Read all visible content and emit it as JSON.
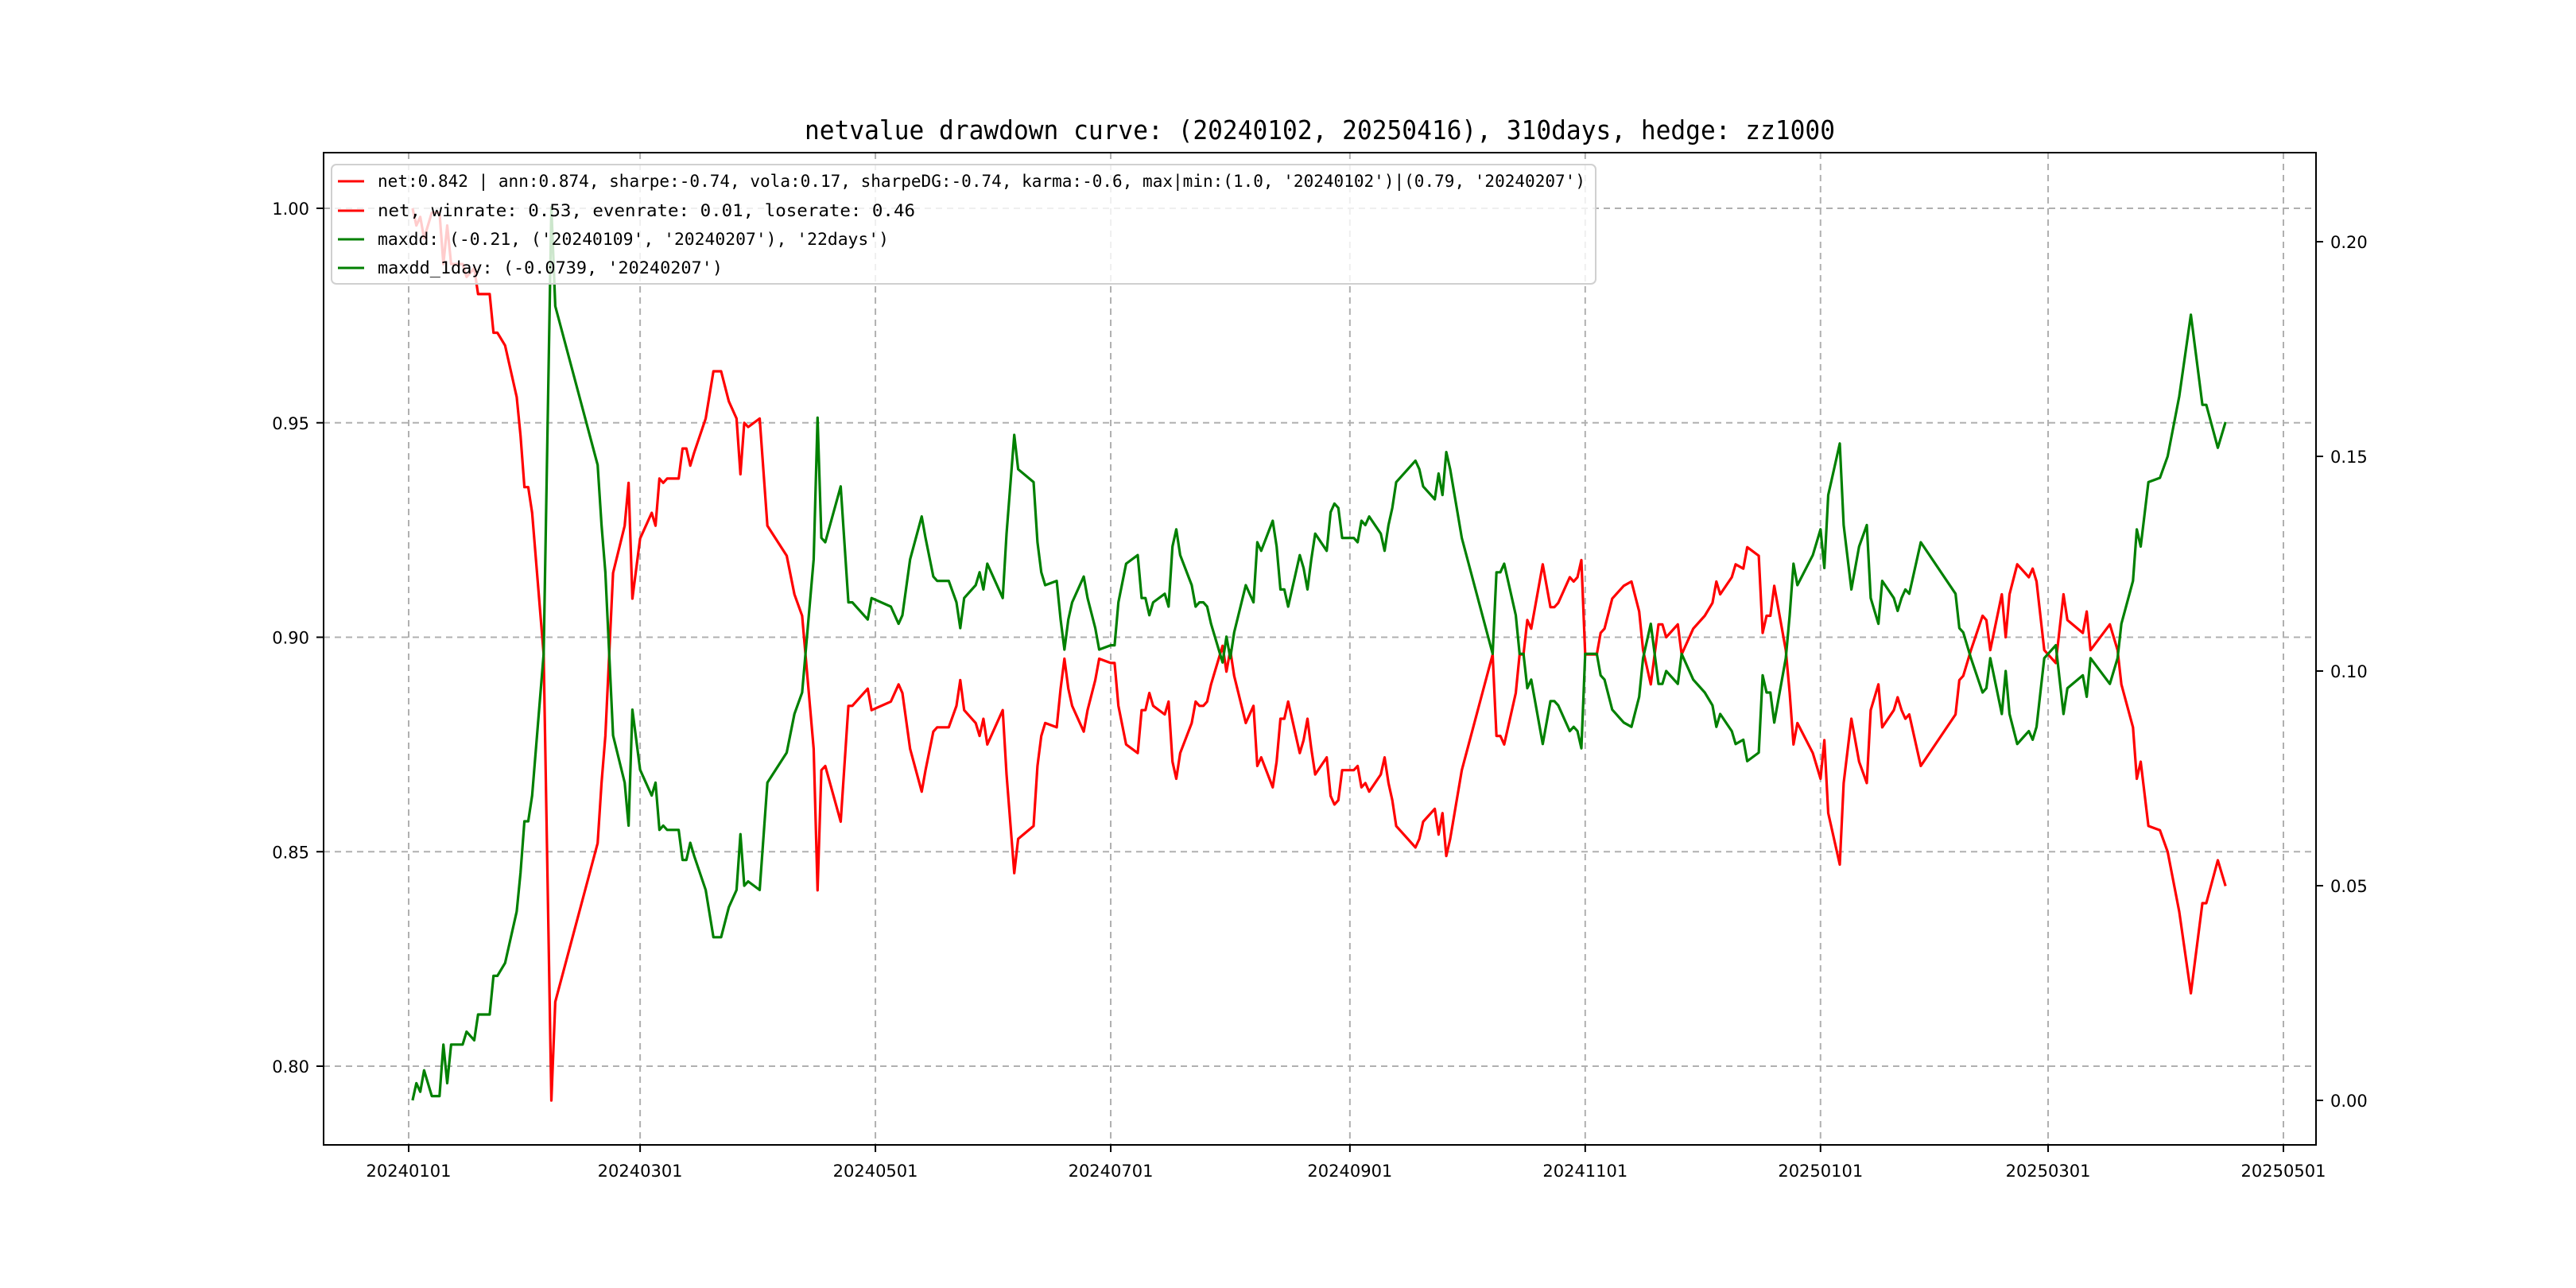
{
  "chart_data": {
    "type": "line",
    "title": "netvalue drawdown curve: (20240102, 20250416), 310days, hedge: zz1000",
    "xlabel": "",
    "ylabel_left": "",
    "ylabel_right": "",
    "x_unit": "days since 20240101",
    "x_range": [
      0,
      486
    ],
    "ylim_left": [
      0.78,
      1.013
    ],
    "ylim_right": [
      -0.013,
      0.22
    ],
    "grid": true,
    "legend_position": "top-left",
    "x_tick_labels": [
      {
        "day": 0,
        "label": "20240101"
      },
      {
        "day": 60,
        "label": "20240301"
      },
      {
        "day": 121,
        "label": "20240501"
      },
      {
        "day": 182,
        "label": "20240701"
      },
      {
        "day": 244,
        "label": "20240901"
      },
      {
        "day": 305,
        "label": "20241101"
      },
      {
        "day": 366,
        "label": "20250101"
      },
      {
        "day": 425,
        "label": "20250301"
      },
      {
        "day": 486,
        "label": "20250501"
      }
    ],
    "y_left_ticks": [
      0.8,
      0.85,
      0.9,
      0.95,
      1.0
    ],
    "y_left_tick_labels": [
      "0.80",
      "0.85",
      "0.90",
      "0.95",
      "1.00"
    ],
    "y_right_ticks": [
      0.0,
      0.05,
      0.1,
      0.15,
      0.2
    ],
    "y_right_tick_labels": [
      "0.00",
      "0.05",
      "0.10",
      "0.15",
      "0.20"
    ],
    "legend": [
      {
        "label": "net:0.842 | ann:0.874, sharpe:-0.74, vola:0.17, sharpeDG:-0.74, karma:-0.6, max|min:(1.0, '20240102')|(0.79, '20240207')",
        "color": "#ff0000"
      },
      {
        "label": "net, winrate: 0.53, evenrate: 0.01, loserate: 0.46",
        "color": "#ff0000"
      },
      {
        "label": "maxdd: (-0.21, ('20240109', '20240207'), '22days')",
        "color": "#008000"
      },
      {
        "label": "maxdd_1day: (-0.0739, '20240207')",
        "color": "#008000"
      }
    ],
    "x": [
      1,
      2,
      3,
      4,
      6,
      8,
      9,
      10,
      11,
      14,
      15,
      17,
      18,
      21,
      22,
      23,
      25,
      28,
      29,
      30,
      31,
      32,
      35,
      37,
      38,
      49,
      50,
      51,
      53,
      56,
      57,
      58,
      60,
      63,
      64,
      65,
      66,
      67,
      70,
      71,
      72,
      73,
      74,
      77,
      79,
      81,
      83,
      85,
      86,
      87,
      88,
      91,
      93,
      98,
      100,
      102,
      105,
      106,
      107,
      108,
      112,
      114,
      115,
      119,
      120,
      125,
      127,
      128,
      130,
      133,
      134,
      136,
      137,
      140,
      142,
      143,
      144,
      147,
      148,
      149,
      150,
      154,
      155,
      157,
      158,
      162,
      163,
      164,
      165,
      168,
      169,
      170,
      171,
      172,
      175,
      176,
      178,
      179,
      182,
      183,
      184,
      186,
      189,
      190,
      191,
      192,
      193,
      196,
      197,
      198,
      199,
      200,
      203,
      204,
      205,
      206,
      207,
      208,
      211,
      212,
      213,
      214,
      217,
      219,
      220,
      221,
      224,
      225,
      226,
      227,
      228,
      231,
      232,
      233,
      234,
      235,
      238,
      239,
      240,
      241,
      242,
      245,
      246,
      247,
      248,
      249,
      252,
      253,
      254,
      255,
      256,
      261,
      262,
      263,
      266,
      267,
      268,
      269,
      270,
      273,
      281,
      282,
      283,
      284,
      287,
      288,
      289,
      290,
      291,
      294,
      296,
      297,
      298,
      301,
      302,
      303,
      304,
      305,
      308,
      309,
      310,
      312,
      315,
      317,
      319,
      320,
      322,
      324,
      325,
      326,
      329,
      330,
      333,
      336,
      338,
      339,
      340,
      343,
      344,
      346,
      347,
      350,
      351,
      352,
      353,
      354,
      357,
      358,
      359,
      360,
      364,
      366,
      367,
      368,
      371,
      372,
      374,
      376,
      378,
      379,
      381,
      382,
      385,
      386,
      387,
      388,
      389,
      392,
      401,
      402,
      403,
      405,
      408,
      409,
      410,
      413,
      414,
      415,
      417,
      420,
      421,
      422,
      424,
      427,
      429,
      430,
      434,
      435,
      436,
      441,
      443,
      444,
      447,
      448,
      449,
      451,
      454,
      456,
      459,
      462,
      465,
      466,
      469,
      471
    ],
    "series": [
      {
        "name": "net",
        "axis": "left",
        "color": "#ff0000",
        "values": [
          1.0,
          0.996,
          0.998,
          0.993,
          0.999,
          0.999,
          0.987,
          0.996,
          0.987,
          0.987,
          0.984,
          0.986,
          0.98,
          0.98,
          0.971,
          0.971,
          0.968,
          0.956,
          0.947,
          0.935,
          0.935,
          0.929,
          0.896,
          0.792,
          0.815,
          0.852,
          0.866,
          0.877,
          0.915,
          0.926,
          0.936,
          0.909,
          0.923,
          0.929,
          0.926,
          0.937,
          0.936,
          0.937,
          0.937,
          0.944,
          0.944,
          0.94,
          0.943,
          0.951,
          0.962,
          0.962,
          0.955,
          0.951,
          0.938,
          0.95,
          0.949,
          0.951,
          0.926,
          0.919,
          0.91,
          0.905,
          0.874,
          0.841,
          0.869,
          0.87,
          0.857,
          0.884,
          0.884,
          0.888,
          0.883,
          0.885,
          0.889,
          0.887,
          0.874,
          0.864,
          0.869,
          0.878,
          0.879,
          0.879,
          0.884,
          0.89,
          0.883,
          0.88,
          0.877,
          0.881,
          0.875,
          0.883,
          0.868,
          0.845,
          0.853,
          0.856,
          0.87,
          0.877,
          0.88,
          0.879,
          0.888,
          0.895,
          0.888,
          0.884,
          0.878,
          0.883,
          0.89,
          0.895,
          0.894,
          0.894,
          0.884,
          0.875,
          0.873,
          0.883,
          0.883,
          0.887,
          0.884,
          0.882,
          0.885,
          0.871,
          0.867,
          0.873,
          0.88,
          0.885,
          0.884,
          0.884,
          0.885,
          0.889,
          0.898,
          0.892,
          0.897,
          0.891,
          0.88,
          0.884,
          0.87,
          0.872,
          0.865,
          0.871,
          0.881,
          0.881,
          0.885,
          0.873,
          0.876,
          0.881,
          0.874,
          0.868,
          0.872,
          0.863,
          0.861,
          0.862,
          0.869,
          0.869,
          0.87,
          0.865,
          0.866,
          0.864,
          0.868,
          0.872,
          0.866,
          0.862,
          0.856,
          0.851,
          0.853,
          0.857,
          0.86,
          0.854,
          0.859,
          0.849,
          0.853,
          0.869,
          0.896,
          0.877,
          0.877,
          0.875,
          0.887,
          0.896,
          0.896,
          0.904,
          0.902,
          0.917,
          0.907,
          0.907,
          0.908,
          0.914,
          0.913,
          0.914,
          0.918,
          0.896,
          0.896,
          0.901,
          0.902,
          0.909,
          0.912,
          0.913,
          0.906,
          0.897,
          0.889,
          0.903,
          0.903,
          0.9,
          0.903,
          0.896,
          0.902,
          0.905,
          0.908,
          0.913,
          0.91,
          0.914,
          0.917,
          0.916,
          0.921,
          0.919,
          0.901,
          0.905,
          0.905,
          0.912,
          0.897,
          0.887,
          0.875,
          0.88,
          0.873,
          0.867,
          0.876,
          0.859,
          0.847,
          0.866,
          0.881,
          0.871,
          0.866,
          0.883,
          0.889,
          0.879,
          0.883,
          0.886,
          0.883,
          0.881,
          0.882,
          0.87,
          0.882,
          0.89,
          0.891,
          0.897,
          0.905,
          0.904,
          0.897,
          0.91,
          0.9,
          0.91,
          0.917,
          0.914,
          0.916,
          0.913,
          0.897,
          0.894,
          0.91,
          0.904,
          0.901,
          0.906,
          0.897,
          0.903,
          0.897,
          0.889,
          0.879,
          0.867,
          0.871,
          0.856,
          0.855,
          0.85,
          0.836,
          0.817,
          0.838,
          0.838,
          0.848,
          0.842
        ]
      },
      {
        "name": "maxdd",
        "axis": "right",
        "color": "#008000",
        "values": [
          0.0,
          0.004,
          0.002,
          0.007,
          0.001,
          0.001,
          0.013,
          0.004,
          0.013,
          0.013,
          0.016,
          0.014,
          0.02,
          0.02,
          0.029,
          0.029,
          0.032,
          0.044,
          0.053,
          0.065,
          0.065,
          0.071,
          0.104,
          0.208,
          0.185,
          0.148,
          0.134,
          0.123,
          0.085,
          0.074,
          0.064,
          0.091,
          0.077,
          0.071,
          0.074,
          0.063,
          0.064,
          0.063,
          0.063,
          0.056,
          0.056,
          0.06,
          0.057,
          0.049,
          0.038,
          0.038,
          0.045,
          0.049,
          0.062,
          0.05,
          0.051,
          0.049,
          0.074,
          0.081,
          0.09,
          0.095,
          0.126,
          0.159,
          0.131,
          0.13,
          0.143,
          0.116,
          0.116,
          0.112,
          0.117,
          0.115,
          0.111,
          0.113,
          0.126,
          0.136,
          0.131,
          0.122,
          0.121,
          0.121,
          0.116,
          0.11,
          0.117,
          0.12,
          0.123,
          0.119,
          0.125,
          0.117,
          0.132,
          0.155,
          0.147,
          0.144,
          0.13,
          0.123,
          0.12,
          0.121,
          0.112,
          0.105,
          0.112,
          0.116,
          0.122,
          0.117,
          0.11,
          0.105,
          0.106,
          0.106,
          0.116,
          0.125,
          0.127,
          0.117,
          0.117,
          0.113,
          0.116,
          0.118,
          0.115,
          0.129,
          0.133,
          0.127,
          0.12,
          0.115,
          0.116,
          0.116,
          0.115,
          0.111,
          0.102,
          0.108,
          0.103,
          0.109,
          0.12,
          0.116,
          0.13,
          0.128,
          0.135,
          0.129,
          0.119,
          0.119,
          0.115,
          0.127,
          0.124,
          0.119,
          0.126,
          0.132,
          0.128,
          0.137,
          0.139,
          0.138,
          0.131,
          0.131,
          0.13,
          0.135,
          0.134,
          0.136,
          0.132,
          0.128,
          0.134,
          0.138,
          0.144,
          0.149,
          0.147,
          0.143,
          0.14,
          0.146,
          0.141,
          0.151,
          0.147,
          0.131,
          0.104,
          0.123,
          0.123,
          0.125,
          0.113,
          0.104,
          0.104,
          0.096,
          0.098,
          0.083,
          0.093,
          0.093,
          0.092,
          0.086,
          0.087,
          0.086,
          0.082,
          0.104,
          0.104,
          0.099,
          0.098,
          0.091,
          0.088,
          0.087,
          0.094,
          0.103,
          0.111,
          0.097,
          0.097,
          0.1,
          0.097,
          0.104,
          0.098,
          0.095,
          0.092,
          0.087,
          0.09,
          0.086,
          0.083,
          0.084,
          0.079,
          0.081,
          0.099,
          0.095,
          0.095,
          0.088,
          0.103,
          0.113,
          0.125,
          0.12,
          0.127,
          0.133,
          0.124,
          0.141,
          0.153,
          0.134,
          0.119,
          0.129,
          0.134,
          0.117,
          0.111,
          0.121,
          0.117,
          0.114,
          0.117,
          0.119,
          0.118,
          0.13,
          0.118,
          0.11,
          0.109,
          0.103,
          0.095,
          0.096,
          0.103,
          0.09,
          0.1,
          0.09,
          0.083,
          0.086,
          0.084,
          0.087,
          0.103,
          0.106,
          0.09,
          0.096,
          0.099,
          0.094,
          0.103,
          0.097,
          0.103,
          0.111,
          0.121,
          0.133,
          0.129,
          0.144,
          0.145,
          0.15,
          0.164,
          0.183,
          0.162,
          0.162,
          0.152,
          0.158
        ]
      }
    ]
  }
}
